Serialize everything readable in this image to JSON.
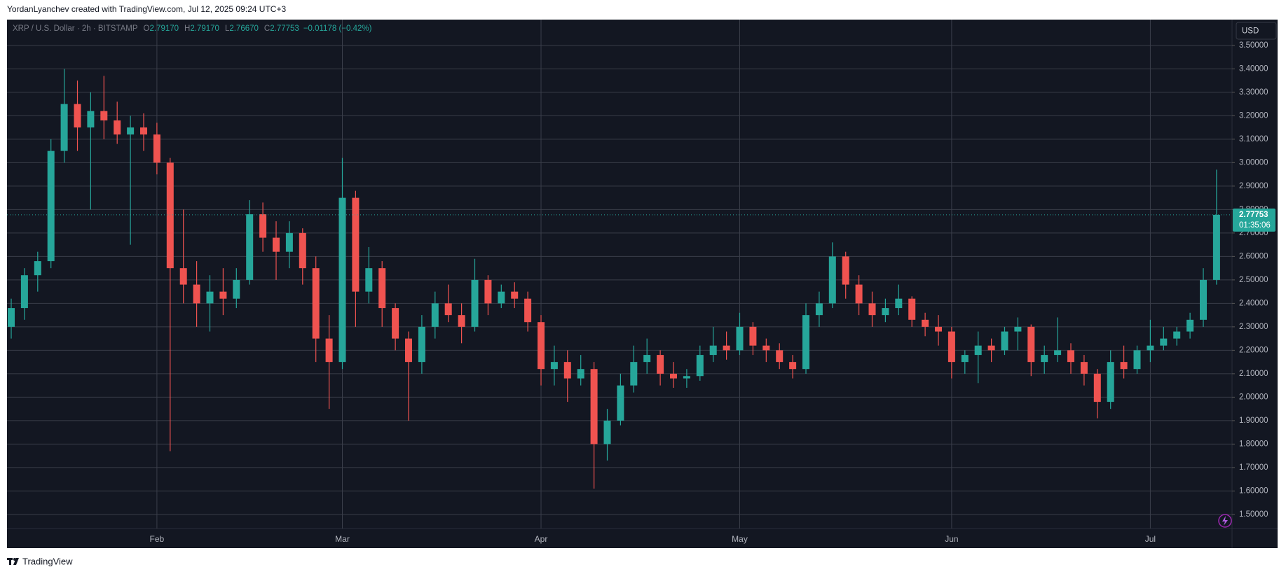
{
  "header": {
    "caption": "YordanLyanchev created with TradingView.com, Jul 12, 2025 09:24 UTC+3"
  },
  "chart_data": {
    "type": "candlestick",
    "symbol": "XRP / U.S. Dollar · 2h · BITSTAMP",
    "legend_ohlc": [
      {
        "label": "O",
        "value": "2.79170"
      },
      {
        "label": "H",
        "value": "2.79170"
      },
      {
        "label": "L",
        "value": "2.76670"
      },
      {
        "label": "C",
        "value": "2.77753"
      }
    ],
    "change": "−0.01178 (−0.42%)",
    "currency": "USD",
    "countdown": "01:35:06",
    "up_color": "#26a69a",
    "down_color": "#ef5350",
    "grid": true,
    "ylim": [
      1.44,
      3.61
    ],
    "yticks": [
      {
        "value": 1.5,
        "label": "1.50000"
      },
      {
        "value": 1.6,
        "label": "1.60000"
      },
      {
        "value": 1.7,
        "label": "1.70000"
      },
      {
        "value": 1.8,
        "label": "1.80000"
      },
      {
        "value": 1.9,
        "label": "1.90000"
      },
      {
        "value": 2.0,
        "label": "2.00000"
      },
      {
        "value": 2.1,
        "label": "2.10000"
      },
      {
        "value": 2.2,
        "label": "2.20000"
      },
      {
        "value": 2.3,
        "label": "2.30000"
      },
      {
        "value": 2.4,
        "label": "2.40000"
      },
      {
        "value": 2.5,
        "label": "2.50000"
      },
      {
        "value": 2.6,
        "label": "2.60000"
      },
      {
        "value": 2.7,
        "label": "2.70000"
      },
      {
        "value": 2.8,
        "label": "2.80000"
      },
      {
        "value": 2.9,
        "label": "2.90000"
      },
      {
        "value": 3.0,
        "label": "3.00000"
      },
      {
        "value": 3.1,
        "label": "3.10000"
      },
      {
        "value": 3.2,
        "label": "3.20000"
      },
      {
        "value": 3.3,
        "label": "3.30000"
      },
      {
        "value": 3.4,
        "label": "3.40000"
      },
      {
        "value": 3.5,
        "label": "3.50000"
      }
    ],
    "categories": [
      null,
      null,
      null,
      null,
      null,
      null,
      null,
      null,
      null,
      null,
      null,
      "Feb",
      null,
      null,
      null,
      null,
      null,
      null,
      null,
      null,
      null,
      null,
      null,
      null,
      null,
      "Mar",
      null,
      null,
      null,
      null,
      null,
      null,
      null,
      null,
      null,
      null,
      null,
      null,
      null,
      null,
      "Apr",
      null,
      null,
      null,
      null,
      null,
      null,
      null,
      null,
      null,
      null,
      null,
      null,
      null,
      null,
      "May",
      null,
      null,
      null,
      null,
      null,
      null,
      null,
      null,
      null,
      null,
      null,
      null,
      null,
      null,
      null,
      "Jun",
      null,
      null,
      null,
      null,
      null,
      null,
      null,
      null,
      null,
      null,
      null,
      null,
      null,
      null,
      "Jul",
      null,
      null,
      null,
      null,
      null
    ],
    "open": [
      2.3,
      2.38,
      2.52,
      2.58,
      3.05,
      3.25,
      3.15,
      3.22,
      3.18,
      3.12,
      3.15,
      3.12,
      3.0,
      2.55,
      2.48,
      2.4,
      2.45,
      2.42,
      2.5,
      2.78,
      2.68,
      2.62,
      2.7,
      2.55,
      2.25,
      2.15,
      2.85,
      2.45,
      2.55,
      2.38,
      2.25,
      2.15,
      2.3,
      2.4,
      2.35,
      2.3,
      2.5,
      2.4,
      2.45,
      2.42,
      2.32,
      2.12,
      2.15,
      2.08,
      2.12,
      1.8,
      1.9,
      2.05,
      2.15,
      2.18,
      2.1,
      2.08,
      2.09,
      2.18,
      2.22,
      2.2,
      2.3,
      2.22,
      2.2,
      2.15,
      2.12,
      2.35,
      2.4,
      2.6,
      2.48,
      2.4,
      2.35,
      2.38,
      2.42,
      2.33,
      2.3,
      2.28,
      2.15,
      2.18,
      2.22,
      2.2,
      2.28,
      2.3,
      2.15,
      2.18,
      2.2,
      2.15,
      2.1,
      1.98,
      2.15,
      2.12,
      2.2,
      2.22,
      2.25,
      2.28,
      2.33,
      2.5
    ],
    "high": [
      2.42,
      2.55,
      2.62,
      3.1,
      3.4,
      3.35,
      3.3,
      3.37,
      3.26,
      3.2,
      3.21,
      3.17,
      3.02,
      2.8,
      2.58,
      2.52,
      2.55,
      2.55,
      2.84,
      2.83,
      2.75,
      2.75,
      2.72,
      2.6,
      2.35,
      3.02,
      2.88,
      2.64,
      2.58,
      2.4,
      2.28,
      2.35,
      2.45,
      2.48,
      2.4,
      2.59,
      2.52,
      2.48,
      2.49,
      2.45,
      2.35,
      2.22,
      2.2,
      2.18,
      2.15,
      1.95,
      2.1,
      2.22,
      2.25,
      2.2,
      2.15,
      2.12,
      2.22,
      2.3,
      2.28,
      2.36,
      2.32,
      2.25,
      2.23,
      2.18,
      2.4,
      2.45,
      2.66,
      2.62,
      2.52,
      2.45,
      2.42,
      2.48,
      2.43,
      2.36,
      2.35,
      2.3,
      2.2,
      2.28,
      2.25,
      2.3,
      2.34,
      2.31,
      2.22,
      2.34,
      2.23,
      2.18,
      2.12,
      2.2,
      2.22,
      2.22,
      2.33,
      2.3,
      2.3,
      2.36,
      2.55,
      2.97
    ],
    "low": [
      2.25,
      2.33,
      2.45,
      2.55,
      3.0,
      3.05,
      2.8,
      3.1,
      3.08,
      2.65,
      3.05,
      2.95,
      1.77,
      2.4,
      2.3,
      2.28,
      2.35,
      2.38,
      2.48,
      2.62,
      2.5,
      2.55,
      2.48,
      2.15,
      1.95,
      2.12,
      2.3,
      2.4,
      2.3,
      2.2,
      1.9,
      2.1,
      2.25,
      2.32,
      2.23,
      2.28,
      2.35,
      2.38,
      2.38,
      2.28,
      2.05,
      2.05,
      1.98,
      2.05,
      1.61,
      1.73,
      1.88,
      2.02,
      2.1,
      2.05,
      2.04,
      2.04,
      2.07,
      2.15,
      2.16,
      2.18,
      2.18,
      2.15,
      2.12,
      2.08,
      2.1,
      2.3,
      2.38,
      2.42,
      2.35,
      2.3,
      2.32,
      2.35,
      2.3,
      2.26,
      2.22,
      2.08,
      2.1,
      2.06,
      2.15,
      2.18,
      2.2,
      2.09,
      2.1,
      2.15,
      2.1,
      2.05,
      1.91,
      1.95,
      2.08,
      2.1,
      2.15,
      2.2,
      2.22,
      2.25,
      2.3,
      2.48
    ],
    "close": [
      2.38,
      2.52,
      2.58,
      3.05,
      3.25,
      3.15,
      3.22,
      3.18,
      3.12,
      3.15,
      3.12,
      3.0,
      2.55,
      2.48,
      2.4,
      2.45,
      2.42,
      2.5,
      2.78,
      2.68,
      2.62,
      2.7,
      2.55,
      2.25,
      2.15,
      2.85,
      2.45,
      2.55,
      2.38,
      2.25,
      2.15,
      2.3,
      2.4,
      2.35,
      2.3,
      2.5,
      2.4,
      2.45,
      2.42,
      2.32,
      2.12,
      2.15,
      2.08,
      2.12,
      1.8,
      1.9,
      2.05,
      2.15,
      2.18,
      2.1,
      2.08,
      2.09,
      2.18,
      2.22,
      2.2,
      2.3,
      2.22,
      2.2,
      2.15,
      2.12,
      2.35,
      2.4,
      2.6,
      2.48,
      2.4,
      2.35,
      2.38,
      2.42,
      2.33,
      2.3,
      2.28,
      2.15,
      2.18,
      2.22,
      2.2,
      2.28,
      2.3,
      2.15,
      2.18,
      2.2,
      2.15,
      2.1,
      1.98,
      2.15,
      2.12,
      2.2,
      2.22,
      2.25,
      2.28,
      2.33,
      2.5,
      2.77753
    ]
  },
  "footer": {
    "brand": "TradingView"
  }
}
